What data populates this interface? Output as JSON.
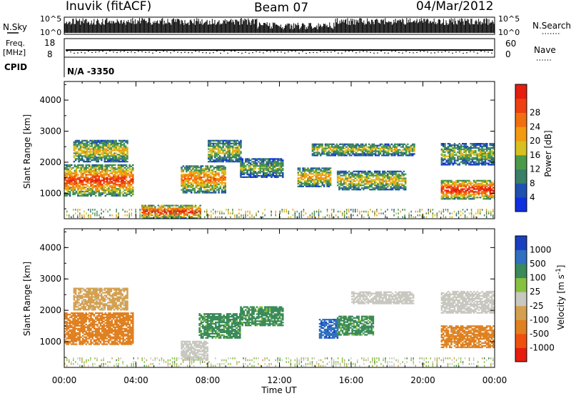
{
  "header": {
    "station": "Inuvik (fitACF)",
    "beam": "Beam 07",
    "date": "04/Mar/2012"
  },
  "top_panels": {
    "nsky_label": "N.Sky",
    "nsearch_label": "N.Search",
    "noise_ticks": [
      "10^5",
      "10^0"
    ],
    "freq_label": "Freq.",
    "freq_unit": "[MHz]",
    "freq_ticks": [
      "18",
      "8"
    ],
    "nave_label": "Nave",
    "nave_ticks": [
      "60",
      "0"
    ],
    "cpid_label": "CPID",
    "cpid_value": "N/A -3350"
  },
  "colors": {
    "power_scale": [
      "#1030e0",
      "#2050b0",
      "#3a7f66",
      "#4a9a4a",
      "#d8c020",
      "#f29a10",
      "#f07010",
      "#ee4010",
      "#e51e10"
    ],
    "velocity_scale": [
      "#1a40c0",
      "#2f70c0",
      "#3a8a5a",
      "#88c040",
      "#c8c8c0",
      "#d4a050",
      "#e08020",
      "#ef5010",
      "#e51e10"
    ]
  },
  "chart_data": [
    {
      "type": "heatmap",
      "panel": "power",
      "ylabel": "Slant Range [km]",
      "xlabel": "Time UT",
      "x_ticks": [
        "00:00",
        "04:00",
        "08:00",
        "12:00",
        "16:00",
        "20:00",
        "00:00"
      ],
      "y_ticks": [
        1000,
        2000,
        3000,
        4000
      ],
      "ylim": [
        180,
        4600
      ],
      "xlim_hours": [
        0,
        24
      ],
      "colorbar": {
        "label": "Power [dB]",
        "ticks": [
          "4",
          "8",
          "12",
          "16",
          "20",
          "24",
          "28"
        ],
        "range": [
          0,
          30
        ]
      },
      "patches": [
        {
          "t0": 0.0,
          "t1": 3.8,
          "r0": 900,
          "r1": 1900,
          "value": 24
        },
        {
          "t0": 0.5,
          "t1": 3.5,
          "r0": 2000,
          "r1": 2700,
          "value": 16
        },
        {
          "t0": 4.3,
          "t1": 7.6,
          "r0": 180,
          "r1": 600,
          "value": 26
        },
        {
          "t0": 6.5,
          "t1": 9.0,
          "r0": 1000,
          "r1": 1900,
          "value": 20
        },
        {
          "t0": 8.0,
          "t1": 9.8,
          "r0": 2000,
          "r1": 2700,
          "value": 14
        },
        {
          "t0": 9.8,
          "t1": 12.2,
          "r0": 1500,
          "r1": 2100,
          "value": 12
        },
        {
          "t0": 13.0,
          "t1": 14.8,
          "r0": 1200,
          "r1": 1800,
          "value": 18
        },
        {
          "t0": 15.2,
          "t1": 19.0,
          "r0": 1100,
          "r1": 1700,
          "value": 16
        },
        {
          "t0": 13.8,
          "t1": 19.5,
          "r0": 2200,
          "r1": 2600,
          "value": 14
        },
        {
          "t0": 21.0,
          "t1": 24.0,
          "r0": 800,
          "r1": 1400,
          "value": 27
        },
        {
          "t0": 21.0,
          "t1": 24.0,
          "r0": 1900,
          "r1": 2600,
          "value": 13
        }
      ]
    },
    {
      "type": "heatmap",
      "panel": "velocity",
      "ylabel": "Slant Range [km]",
      "xlabel": "Time UT",
      "x_ticks": [
        "00:00",
        "04:00",
        "08:00",
        "12:00",
        "16:00",
        "20:00",
        "00:00"
      ],
      "y_ticks": [
        1000,
        2000,
        3000,
        4000
      ],
      "ylim": [
        180,
        4600
      ],
      "xlim_hours": [
        0,
        24
      ],
      "colorbar": {
        "label": "Velocity [m s",
        "label_sup": "-1",
        "label_end": "]",
        "ticks": [
          "1000",
          "500",
          "100",
          "25",
          "-25",
          "-100",
          "-500",
          "-1000"
        ]
      },
      "patches": [
        {
          "t0": 0.0,
          "t1": 3.8,
          "r0": 900,
          "r1": 1900,
          "value": -200
        },
        {
          "t0": 0.5,
          "t1": 3.5,
          "r0": 2000,
          "r1": 2700,
          "value": -60
        },
        {
          "t0": 6.5,
          "t1": 8.0,
          "r0": 400,
          "r1": 1000,
          "value": 0
        },
        {
          "t0": 7.5,
          "t1": 9.8,
          "r0": 1100,
          "r1": 1900,
          "value": 150
        },
        {
          "t0": 9.8,
          "t1": 12.2,
          "r0": 1500,
          "r1": 2100,
          "value": 150
        },
        {
          "t0": 14.2,
          "t1": 15.2,
          "r0": 1100,
          "r1": 1700,
          "value": 800
        },
        {
          "t0": 15.2,
          "t1": 17.2,
          "r0": 1200,
          "r1": 1800,
          "value": 150
        },
        {
          "t0": 16.0,
          "t1": 19.5,
          "r0": 2200,
          "r1": 2600,
          "value": 0
        },
        {
          "t0": 21.0,
          "t1": 24.0,
          "r0": 800,
          "r1": 1500,
          "value": -150
        },
        {
          "t0": 21.0,
          "t1": 24.0,
          "r0": 1900,
          "r1": 2600,
          "value": 0
        }
      ]
    }
  ]
}
